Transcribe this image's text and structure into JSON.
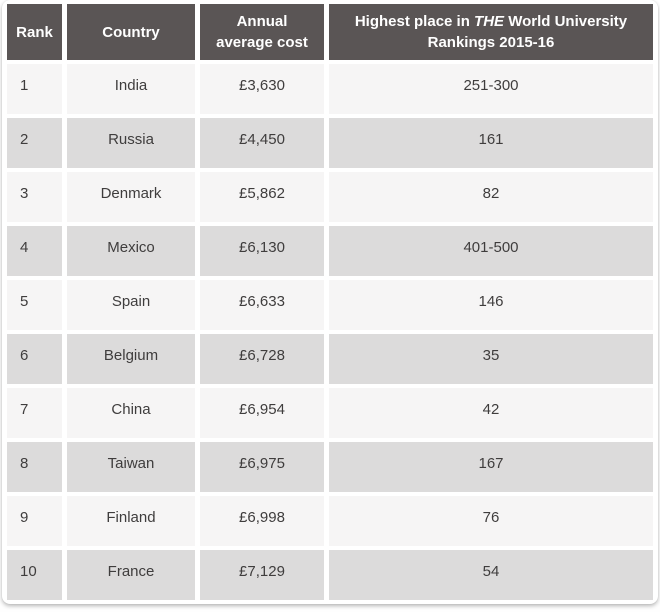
{
  "table": {
    "headers": {
      "rank": "Rank",
      "country": "Country",
      "cost_line1": "Annual",
      "cost_line2": "average cost",
      "ranking_prefix": "Highest place in",
      "ranking_brand": "THE",
      "ranking_suffix": "World University Rankings 2015-16"
    },
    "rows": [
      {
        "rank": "1",
        "country": "India",
        "cost": "£3,630",
        "ranking": "251-300"
      },
      {
        "rank": "2",
        "country": "Russia",
        "cost": "£4,450",
        "ranking": "161"
      },
      {
        "rank": "3",
        "country": "Denmark",
        "cost": "£5,862",
        "ranking": "82"
      },
      {
        "rank": "4",
        "country": "Mexico",
        "cost": "£6,130",
        "ranking": "401-500"
      },
      {
        "rank": "5",
        "country": "Spain",
        "cost": "£6,633",
        "ranking": "146"
      },
      {
        "rank": "6",
        "country": "Belgium",
        "cost": "£6,728",
        "ranking": "35"
      },
      {
        "rank": "7",
        "country": "China",
        "cost": "£6,954",
        "ranking": "42"
      },
      {
        "rank": "8",
        "country": "Taiwan",
        "cost": "£6,975",
        "ranking": "167"
      },
      {
        "rank": "9",
        "country": "Finland",
        "cost": "£6,998",
        "ranking": "76"
      },
      {
        "rank": "10",
        "country": "France",
        "cost": "£7,129",
        "ranking": "54"
      }
    ]
  },
  "colors": {
    "header_bg": "#5a5555",
    "header_text": "#ffffff",
    "row_light": "#f6f5f5",
    "row_dark": "#dcdbdb",
    "body_text": "#3f3d3d"
  },
  "chart_data": {
    "type": "table",
    "columns": [
      "Rank",
      "Country",
      "Annual average cost",
      "Highest place in THE World University Rankings 2015-16"
    ],
    "rows": [
      [
        1,
        "India",
        "£3,630",
        "251-300"
      ],
      [
        2,
        "Russia",
        "£4,450",
        "161"
      ],
      [
        3,
        "Denmark",
        "£5,862",
        "82"
      ],
      [
        4,
        "Mexico",
        "£6,130",
        "401-500"
      ],
      [
        5,
        "Spain",
        "£6,633",
        "146"
      ],
      [
        6,
        "Belgium",
        "£6,728",
        "35"
      ],
      [
        7,
        "China",
        "£6,954",
        "42"
      ],
      [
        8,
        "Taiwan",
        "£6,975",
        "167"
      ],
      [
        9,
        "Finland",
        "£6,998",
        "76"
      ],
      [
        10,
        "France",
        "£7,129",
        "54"
      ]
    ]
  }
}
